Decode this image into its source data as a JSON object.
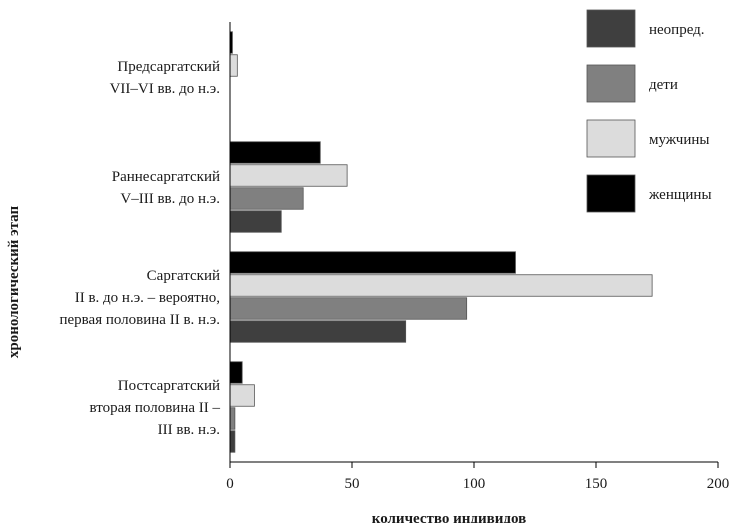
{
  "chart_data": {
    "type": "bar",
    "orientation": "horizontal",
    "xlabel": "количество индивидов",
    "ylabel": "хронологический этап",
    "xlim": [
      0,
      200
    ],
    "xticks": [
      0,
      50,
      100,
      150,
      200
    ],
    "grid": false,
    "legend_position": "top-right",
    "categories": [
      {
        "lines": [
          "Предсаргатский",
          "VII–VI вв. до н.э."
        ]
      },
      {
        "lines": [
          "Раннесаргатский",
          "V–III вв. до н.э."
        ]
      },
      {
        "lines": [
          "Саргатский",
          "II в. до н.э. – вероятно,",
          "первая половина II в. н.э."
        ]
      },
      {
        "lines": [
          "Постсаргатский",
          "вторая половина II –",
          "III вв. н.э."
        ]
      }
    ],
    "series": [
      {
        "name": "женщины",
        "color": "#000000",
        "values": [
          1,
          37,
          117,
          5
        ]
      },
      {
        "name": "мужчины",
        "color": "#dcdcdc",
        "values": [
          3,
          48,
          173,
          10
        ]
      },
      {
        "name": "дети",
        "color": "#808080",
        "values": [
          0,
          30,
          97,
          2
        ]
      },
      {
        "name": "неопред.",
        "color": "#3f3f3f",
        "values": [
          0,
          21,
          72,
          2
        ]
      }
    ],
    "legend_order": [
      "неопред.",
      "дети",
      "мужчины",
      "женщины"
    ]
  }
}
